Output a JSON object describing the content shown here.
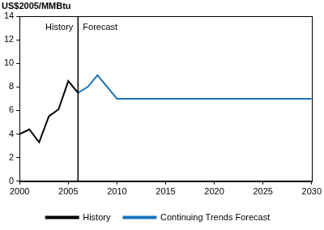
{
  "chart_data": {
    "type": "line",
    "y_label": "US$2005/MMBtu",
    "series": [
      {
        "name": "History",
        "color": "#000000",
        "x": [
          2000,
          2001,
          2002,
          2003,
          2004,
          2005,
          2006
        ],
        "values": [
          4.0,
          4.4,
          3.3,
          5.5,
          6.1,
          8.5,
          7.5
        ]
      },
      {
        "name": "Continuing Trends Forecast",
        "color": "#1a75bc",
        "x": [
          2006,
          2007,
          2008,
          2010,
          2030
        ],
        "values": [
          7.5,
          8.0,
          9.0,
          7.0,
          7.0
        ]
      }
    ],
    "vline": {
      "x": 2006,
      "labels": [
        "History",
        "Forecast"
      ]
    },
    "xlim": [
      2000,
      2030
    ],
    "xticks": [
      2000,
      2005,
      2010,
      2015,
      2020,
      2025,
      2030
    ],
    "ylim": [
      0,
      14
    ],
    "yticks": [
      0,
      2,
      4,
      6,
      8,
      10,
      12,
      14
    ],
    "grid": false,
    "legend": "bottom"
  }
}
